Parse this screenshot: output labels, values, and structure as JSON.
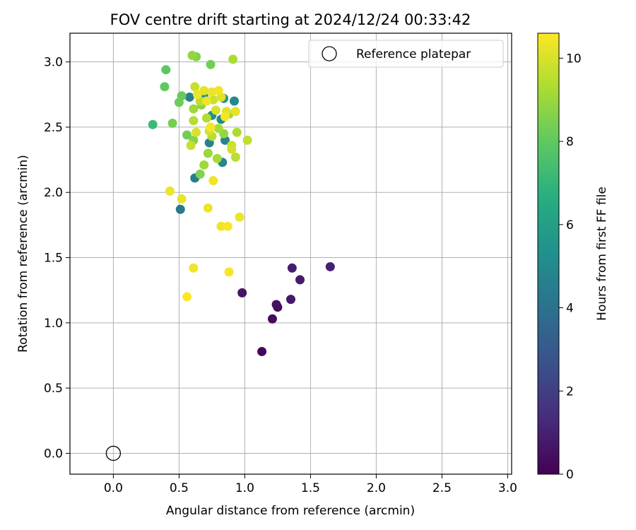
{
  "chart_data": {
    "type": "scatter",
    "title": "FOV centre drift starting at 2024/12/24 00:33:42",
    "xlabel": "Angular distance from reference (arcmin)",
    "ylabel": "Rotation from reference (arcmin)",
    "xlim": [
      -0.33,
      3.03
    ],
    "ylim": [
      -0.16,
      3.22
    ],
    "xticks": [
      "0.0",
      "0.5",
      "1.0",
      "1.5",
      "2.0",
      "2.5",
      "3.0"
    ],
    "yticks": [
      "0.0",
      "0.5",
      "1.0",
      "1.5",
      "2.0",
      "2.5",
      "3.0"
    ],
    "grid": true,
    "legend": {
      "position": "top-right",
      "entries": [
        {
          "label": "Reference platepar",
          "marker": "open-circle",
          "x": 0.0,
          "y": 0.0
        }
      ]
    },
    "colorbar": {
      "label": "Hours from first FF file",
      "colormap": "viridis",
      "range": [
        0,
        10.6
      ],
      "ticks": [
        "0",
        "2",
        "4",
        "6",
        "8",
        "10"
      ]
    },
    "points": [
      {
        "x": 1.13,
        "y": 0.78,
        "h": 0.2
      },
      {
        "x": 1.21,
        "y": 1.03,
        "h": 0.3
      },
      {
        "x": 1.25,
        "y": 1.12,
        "h": 0.4
      },
      {
        "x": 1.24,
        "y": 1.14,
        "h": 0.5
      },
      {
        "x": 0.98,
        "y": 1.23,
        "h": 0.6
      },
      {
        "x": 1.35,
        "y": 1.18,
        "h": 0.7
      },
      {
        "x": 1.42,
        "y": 1.33,
        "h": 0.8
      },
      {
        "x": 1.36,
        "y": 1.42,
        "h": 0.9
      },
      {
        "x": 1.65,
        "y": 1.43,
        "h": 1.0
      },
      {
        "x": 0.51,
        "y": 1.87,
        "h": 4.3
      },
      {
        "x": 0.62,
        "y": 2.11,
        "h": 4.5
      },
      {
        "x": 0.58,
        "y": 2.73,
        "h": 4.6
      },
      {
        "x": 0.73,
        "y": 2.38,
        "h": 4.7
      },
      {
        "x": 0.85,
        "y": 2.4,
        "h": 4.8
      },
      {
        "x": 0.83,
        "y": 2.23,
        "h": 4.9
      },
      {
        "x": 0.92,
        "y": 2.7,
        "h": 5.0
      },
      {
        "x": 0.82,
        "y": 2.56,
        "h": 5.1
      },
      {
        "x": 0.75,
        "y": 2.59,
        "h": 5.3
      },
      {
        "x": 0.69,
        "y": 2.73,
        "h": 5.5
      },
      {
        "x": 0.84,
        "y": 2.72,
        "h": 5.6
      },
      {
        "x": 0.3,
        "y": 2.52,
        "h": 7.2
      },
      {
        "x": 0.4,
        "y": 2.94,
        "h": 7.9
      },
      {
        "x": 0.39,
        "y": 2.81,
        "h": 8.0
      },
      {
        "x": 0.52,
        "y": 2.74,
        "h": 8.1
      },
      {
        "x": 0.5,
        "y": 2.69,
        "h": 8.2
      },
      {
        "x": 0.56,
        "y": 2.44,
        "h": 8.3
      },
      {
        "x": 0.74,
        "y": 2.98,
        "h": 8.3
      },
      {
        "x": 0.45,
        "y": 2.53,
        "h": 8.4
      },
      {
        "x": 0.63,
        "y": 3.04,
        "h": 8.6
      },
      {
        "x": 0.66,
        "y": 2.14,
        "h": 8.6
      },
      {
        "x": 0.61,
        "y": 2.4,
        "h": 8.7
      },
      {
        "x": 0.67,
        "y": 2.67,
        "h": 8.8
      },
      {
        "x": 0.6,
        "y": 3.05,
        "h": 8.9
      },
      {
        "x": 0.84,
        "y": 2.45,
        "h": 8.9
      },
      {
        "x": 0.72,
        "y": 2.3,
        "h": 9.0
      },
      {
        "x": 0.88,
        "y": 2.6,
        "h": 9.0
      },
      {
        "x": 0.69,
        "y": 2.21,
        "h": 9.1
      },
      {
        "x": 0.61,
        "y": 2.64,
        "h": 9.1
      },
      {
        "x": 0.79,
        "y": 2.26,
        "h": 9.2
      },
      {
        "x": 0.8,
        "y": 2.49,
        "h": 9.2
      },
      {
        "x": 0.91,
        "y": 3.02,
        "h": 9.3
      },
      {
        "x": 0.94,
        "y": 2.46,
        "h": 9.3
      },
      {
        "x": 0.61,
        "y": 2.55,
        "h": 9.4
      },
      {
        "x": 0.71,
        "y": 2.57,
        "h": 9.4
      },
      {
        "x": 0.75,
        "y": 2.43,
        "h": 9.5
      },
      {
        "x": 0.93,
        "y": 2.27,
        "h": 9.5
      },
      {
        "x": 1.02,
        "y": 2.4,
        "h": 9.6
      },
      {
        "x": 0.66,
        "y": 2.7,
        "h": 9.6
      },
      {
        "x": 0.59,
        "y": 2.36,
        "h": 9.7
      },
      {
        "x": 0.62,
        "y": 2.81,
        "h": 9.7
      },
      {
        "x": 0.76,
        "y": 2.71,
        "h": 9.8
      },
      {
        "x": 0.9,
        "y": 2.36,
        "h": 9.8
      },
      {
        "x": 0.73,
        "y": 2.47,
        "h": 9.9
      },
      {
        "x": 0.9,
        "y": 2.33,
        "h": 9.9
      },
      {
        "x": 0.78,
        "y": 2.63,
        "h": 10.0
      },
      {
        "x": 0.63,
        "y": 2.46,
        "h": 10.0
      },
      {
        "x": 0.82,
        "y": 2.73,
        "h": 10.1
      },
      {
        "x": 0.86,
        "y": 2.62,
        "h": 10.1
      },
      {
        "x": 0.69,
        "y": 2.78,
        "h": 10.2
      },
      {
        "x": 0.93,
        "y": 2.62,
        "h": 10.2
      },
      {
        "x": 0.75,
        "y": 2.77,
        "h": 10.3
      },
      {
        "x": 0.64,
        "y": 2.75,
        "h": 10.3
      },
      {
        "x": 0.8,
        "y": 2.78,
        "h": 10.4
      },
      {
        "x": 0.71,
        "y": 2.7,
        "h": 10.4
      },
      {
        "x": 0.85,
        "y": 2.58,
        "h": 10.5
      },
      {
        "x": 0.74,
        "y": 2.5,
        "h": 10.5
      },
      {
        "x": 0.43,
        "y": 2.01,
        "h": 10.3
      },
      {
        "x": 0.52,
        "y": 1.95,
        "h": 10.3
      },
      {
        "x": 0.76,
        "y": 2.09,
        "h": 10.4
      },
      {
        "x": 0.72,
        "y": 1.88,
        "h": 10.3
      },
      {
        "x": 0.82,
        "y": 1.74,
        "h": 10.4
      },
      {
        "x": 0.87,
        "y": 1.74,
        "h": 10.5
      },
      {
        "x": 0.96,
        "y": 1.81,
        "h": 10.3
      },
      {
        "x": 0.61,
        "y": 1.42,
        "h": 10.4
      },
      {
        "x": 0.88,
        "y": 1.39,
        "h": 10.5
      },
      {
        "x": 0.56,
        "y": 1.2,
        "h": 10.6
      }
    ]
  }
}
